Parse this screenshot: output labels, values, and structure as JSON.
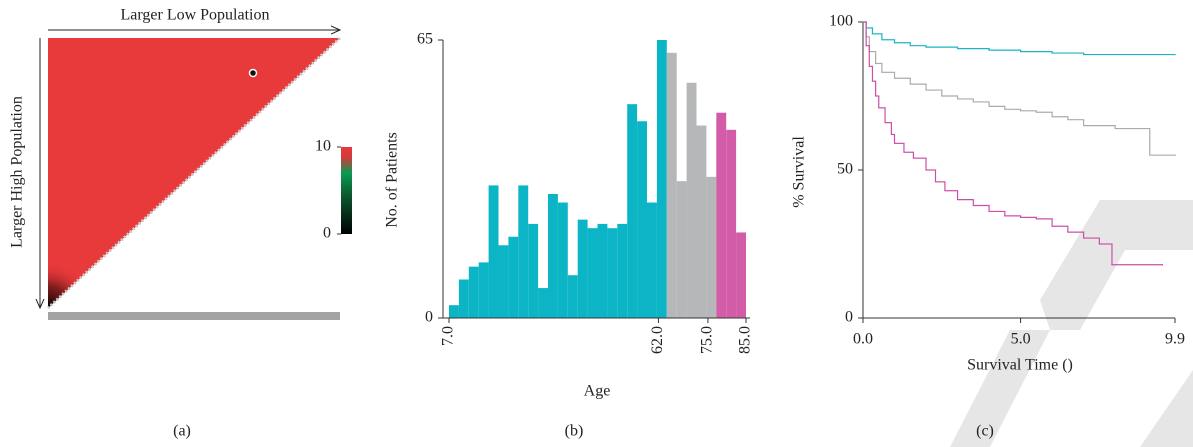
{
  "chart_data": [
    {
      "type": "heatmap",
      "x_label": "Larger Low Population",
      "y_label": "Larger High Population",
      "color": "#e8393b",
      "colorbar": {
        "lim": [
          0,
          10
        ],
        "ticks": [
          0,
          10
        ]
      },
      "caption": "(a)"
    },
    {
      "type": "histogram",
      "bins": [
        7,
        9.6,
        12.2,
        14.8,
        17.4,
        20,
        22.6,
        25.2,
        27.8,
        30.4,
        33,
        35.6,
        38.2,
        40.8,
        43.4,
        46,
        48.6,
        51.2,
        53.8,
        56.4,
        59,
        61.6,
        64.2,
        66.8,
        69.4,
        72,
        74.6,
        77.2,
        79.8,
        82.4,
        85
      ],
      "values": [
        3,
        9,
        12,
        13,
        31,
        17,
        19,
        31,
        22,
        7,
        29,
        27,
        10,
        23,
        21,
        22,
        21,
        22,
        50,
        46,
        27,
        65,
        62,
        32,
        55,
        45,
        33,
        48,
        44,
        20
      ],
      "colors": [
        "#0bb5c6",
        "#0bb5c6",
        "#0bb5c6",
        "#0bb5c6",
        "#0bb5c6",
        "#0bb5c6",
        "#0bb5c6",
        "#0bb5c6",
        "#0bb5c6",
        "#0bb5c6",
        "#0bb5c6",
        "#0bb5c6",
        "#0bb5c6",
        "#0bb5c6",
        "#0bb5c6",
        "#0bb5c6",
        "#0bb5c6",
        "#0bb5c6",
        "#0bb5c6",
        "#0bb5c6",
        "#0bb5c6",
        "#0bb5c6",
        "#b5b7b9",
        "#b5b7b9",
        "#b5b7b9",
        "#b5b7b9",
        "#b5b7b9",
        "#d25ca8",
        "#d25ca8",
        "#d25ca8"
      ],
      "xlim": [
        7,
        85
      ],
      "xticks": [
        {
          "value": 7,
          "label": "7.0"
        },
        {
          "value": 62,
          "label": "62.0"
        },
        {
          "value": 75,
          "label": "75.0"
        },
        {
          "value": 85,
          "label": "85.0"
        }
      ],
      "ylim": [
        0,
        65
      ],
      "yticks": [
        0,
        65
      ],
      "x_label": "Age",
      "y_label": "No. of Patients",
      "caption": "(b)"
    },
    {
      "type": "line",
      "step": true,
      "series": [
        {
          "color": "#1ab4c8",
          "x": [
            0,
            0.1,
            0.3,
            0.6,
            1,
            1.5,
            2,
            3,
            4,
            5,
            6,
            7,
            9.9
          ],
          "values": [
            100,
            98,
            96,
            94,
            93,
            92,
            91.5,
            91,
            90.5,
            90,
            89.5,
            89,
            89
          ]
        },
        {
          "color": "#ababab",
          "x": [
            0,
            0.1,
            0.2,
            0.4,
            0.6,
            1,
            1.5,
            2,
            2.5,
            3,
            3.5,
            4,
            4.5,
            5,
            5.5,
            6,
            6.5,
            7,
            8,
            9.1,
            9.9
          ],
          "values": [
            100,
            95,
            90,
            86,
            83,
            81,
            79,
            77,
            75,
            74,
            73,
            71.5,
            70.5,
            70,
            69.5,
            68,
            67,
            65,
            64,
            55,
            55
          ]
        },
        {
          "color": "#cc4fa6",
          "x": [
            0,
            0.1,
            0.2,
            0.3,
            0.4,
            0.5,
            0.7,
            0.9,
            1,
            1.3,
            1.6,
            2,
            2.3,
            2.6,
            3,
            3.5,
            4,
            4.5,
            5,
            5.5,
            6,
            6.5,
            7,
            7.5,
            7.9,
            9.5
          ],
          "values": [
            100,
            92,
            85,
            80,
            75,
            71,
            66,
            62,
            59,
            56,
            54,
            50,
            46,
            43,
            40,
            38,
            36,
            34.5,
            34,
            33.5,
            31,
            29,
            27,
            25,
            18,
            18
          ]
        }
      ],
      "xlim": [
        0,
        9.9
      ],
      "xticks": [
        {
          "value": 0,
          "label": "0.0"
        },
        {
          "value": 5,
          "label": "5.0"
        },
        {
          "value": 9.9,
          "label": "9.9"
        }
      ],
      "ylim": [
        0,
        100
      ],
      "yticks": [
        0,
        50,
        100
      ],
      "x_label": "Survival Time ()",
      "y_label": "% Survival",
      "caption": "(c)"
    }
  ]
}
